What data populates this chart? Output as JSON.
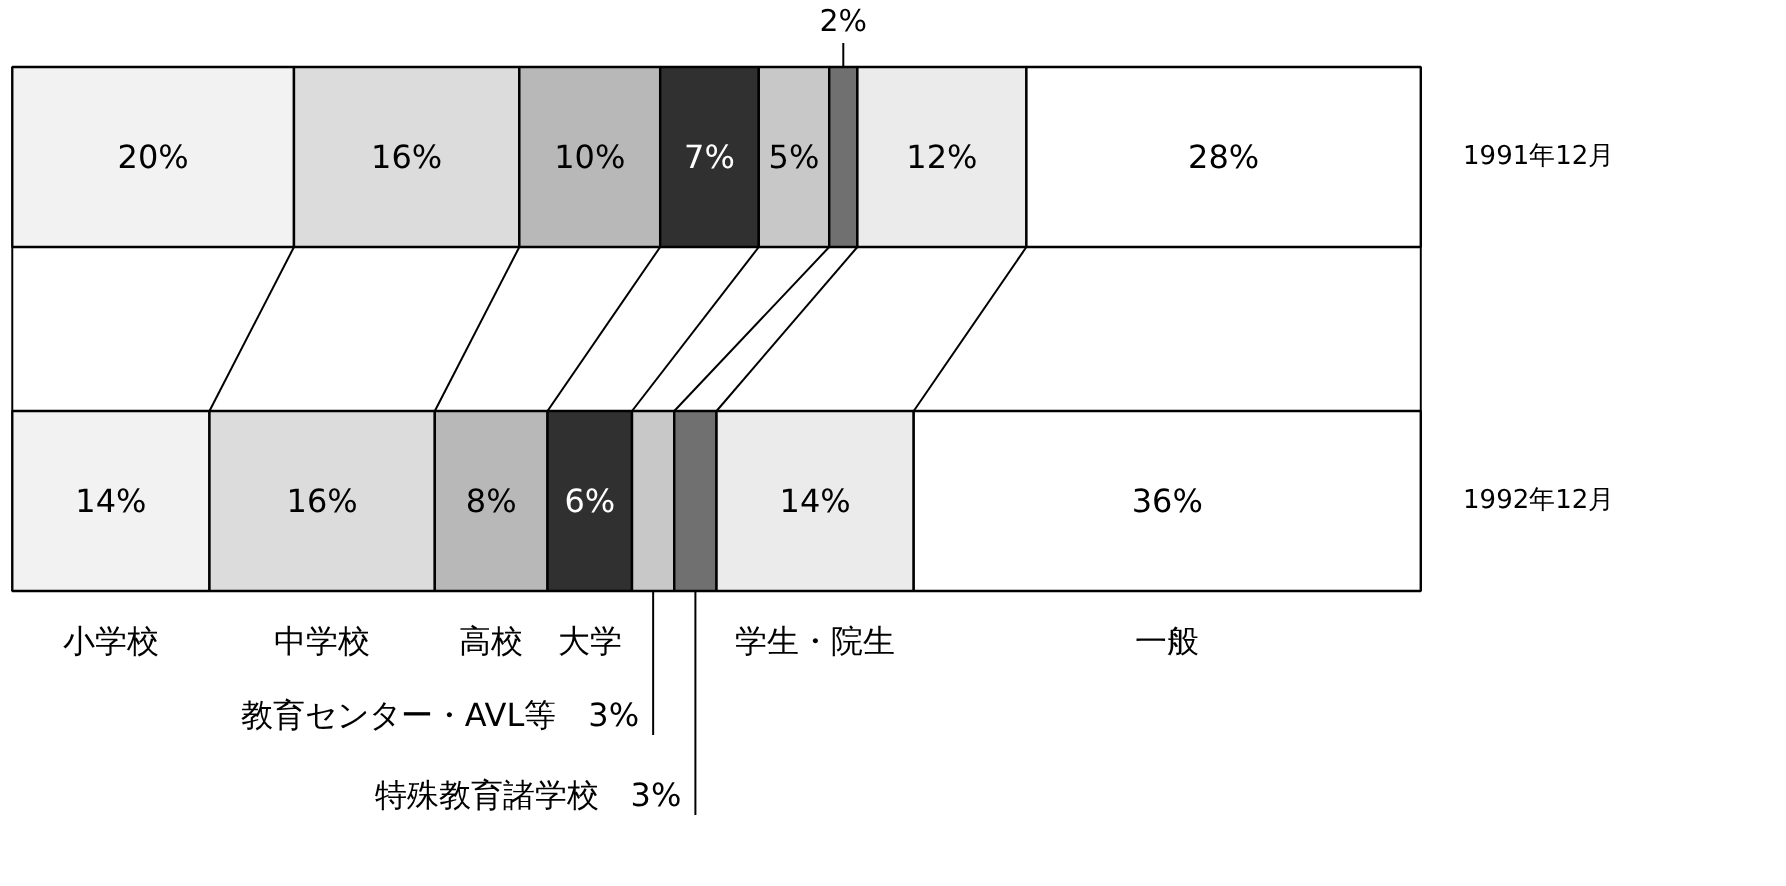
{
  "chart_data": {
    "type": "bar",
    "orientation": "horizontal",
    "stacked": true,
    "grid": false,
    "tick_labels": false,
    "categories": [
      "1991年12月",
      "1992年12月"
    ],
    "series": [
      {
        "name": "小学校",
        "color": "#f2f2f2",
        "values": [
          20,
          14
        ],
        "value_labels": [
          "20%",
          "14%"
        ]
      },
      {
        "name": "中学校",
        "color": "#dcdcdc",
        "values": [
          16,
          16
        ],
        "value_labels": [
          "16%",
          "16%"
        ]
      },
      {
        "name": "高校",
        "color": "#b8b8b8",
        "values": [
          10,
          8
        ],
        "value_labels": [
          "10%",
          "8%"
        ]
      },
      {
        "name": "大学",
        "color": "#303030",
        "values": [
          7,
          6
        ],
        "value_labels": [
          "7%",
          "6%"
        ]
      },
      {
        "name": "教育センター・AVL等",
        "color": "#c8c8c8",
        "values": [
          5,
          3
        ],
        "value_labels": [
          "5%",
          "3%"
        ]
      },
      {
        "name": "特殊教育諸学校",
        "color": "#707070",
        "values": [
          2,
          3
        ],
        "value_labels": [
          "2%",
          "3%"
        ]
      },
      {
        "name": "学生・院生",
        "color": "#ebebeb",
        "values": [
          12,
          14
        ],
        "value_labels": [
          "12%",
          "14%"
        ]
      },
      {
        "name": "一般",
        "color": "#ffffff",
        "values": [
          28,
          36
        ],
        "value_labels": [
          "28%",
          "36%"
        ]
      }
    ]
  }
}
